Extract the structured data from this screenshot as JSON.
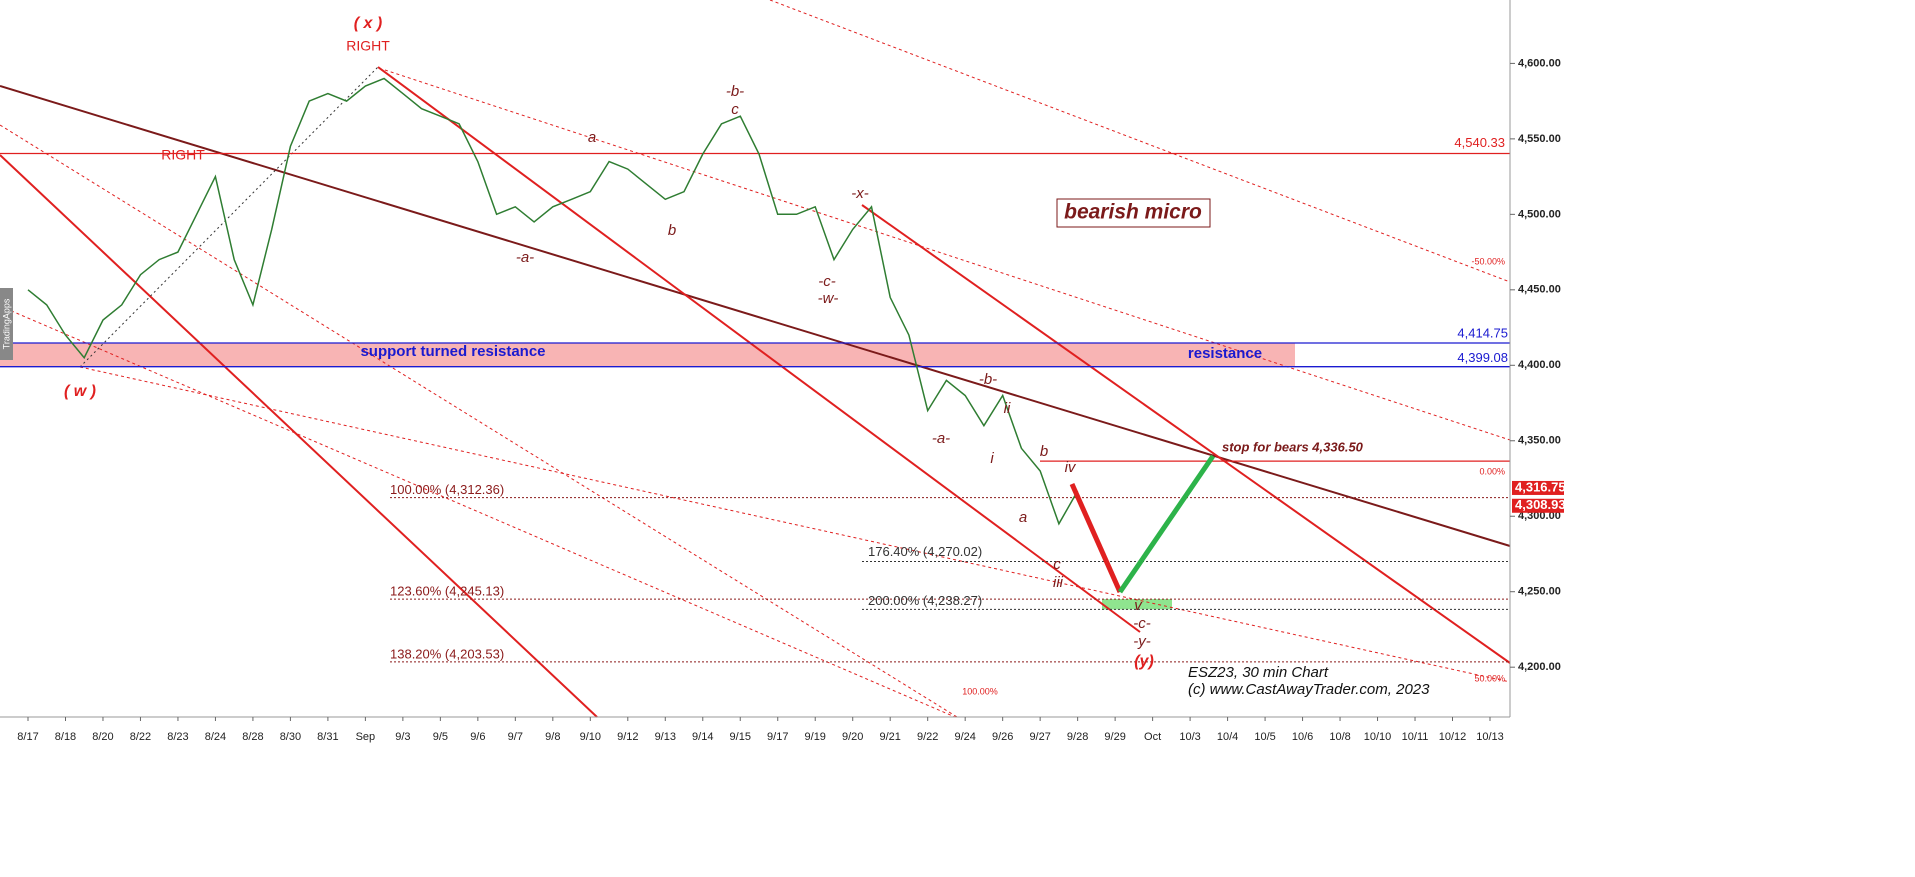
{
  "chart_data": {
    "type": "line",
    "categories": [
      "8/17",
      null,
      "8/18",
      null,
      "8/20",
      null,
      "8/22",
      null,
      "8/23",
      null,
      "8/24",
      null,
      "8/28",
      null,
      "8/30",
      null,
      "8/31",
      null,
      "Sep",
      null,
      "9/3",
      null,
      "9/5",
      null,
      "9/6",
      null,
      "9/7",
      null,
      "9/8",
      null,
      "9/10",
      null,
      "9/12",
      null,
      "9/13",
      null,
      "9/14",
      null,
      "9/15",
      null,
      "9/17",
      null,
      "9/19",
      null,
      "9/20",
      null,
      "9/21",
      null,
      "9/22",
      null,
      "9/24",
      null,
      "9/26",
      null,
      "9/27",
      null,
      "9/28",
      null,
      "9/29",
      null,
      "Oct",
      null,
      "10/3",
      null,
      "10/4",
      null,
      "10/5",
      null,
      "10/6",
      null,
      "10/8",
      null,
      "10/10",
      null,
      "10/11",
      null,
      "10/12",
      null,
      "10/13"
    ],
    "values": [
      4450,
      4440,
      4420,
      4405,
      4430,
      4440,
      4460,
      4470,
      4475,
      4500,
      4525,
      4470,
      4440,
      4490,
      4545,
      4575,
      4580,
      4575,
      4585,
      4590,
      4580,
      4570,
      4565,
      4560,
      4535,
      4500,
      4505,
      4495,
      4505,
      4510,
      4515,
      4535,
      4530,
      4520,
      4510,
      4515,
      4540,
      4560,
      4565,
      4540,
      4500,
      4500,
      4505,
      4470,
      4490,
      4505,
      4445,
      4420,
      4370,
      4390,
      4380,
      4360,
      4380,
      4345,
      4330,
      4295,
      4316.75,
      null,
      null,
      null,
      null,
      null,
      null,
      null,
      null,
      null,
      null,
      null,
      null,
      null,
      null,
      null,
      null,
      null,
      null,
      null,
      null,
      null,
      null
    ],
    "color": "#2f7d32",
    "ylim": [
      4167,
      4642
    ],
    "yticks": [
      {
        "value": 4200,
        "label": "4,200.00"
      },
      {
        "value": 4250,
        "label": "4,250.00"
      },
      {
        "value": 4300,
        "label": "4,300.00"
      },
      {
        "value": 4350,
        "label": "4,350.00"
      },
      {
        "value": 4400,
        "label": "4,400.00"
      },
      {
        "value": 4450,
        "label": "4,450.00"
      },
      {
        "value": 4500,
        "label": "4,500.00"
      },
      {
        "value": 4550,
        "label": "4,550.00"
      },
      {
        "value": 4600,
        "label": "4,600.00"
      }
    ],
    "levels": [
      {
        "value": 4540.33,
        "label": "4,540.33",
        "color": "#e02020",
        "style": "solid"
      },
      {
        "value": 4414.75,
        "label": "4,414.75",
        "color": "#1a1ad0",
        "style": "solid"
      },
      {
        "value": 4399.08,
        "label": "4,399.08",
        "color": "#1a1ad0",
        "style": "solid"
      },
      {
        "value": 4336.5,
        "label": "stop for bears 4,336.50",
        "color": "#e02020",
        "style": "solid"
      },
      {
        "value": 4312.36,
        "label": "100.00% (4,312.36)",
        "color": "#8b1a1a",
        "style": "dotted"
      },
      {
        "value": 4270.02,
        "label": "176.40% (4,270.02)",
        "color": "#333333",
        "style": "dotted"
      },
      {
        "value": 4245.13,
        "label": "123.60% (4,245.13)",
        "color": "#8b1a1a",
        "style": "dotted"
      },
      {
        "value": 4238.27,
        "label": "200.00% (4,238.27)",
        "color": "#333333",
        "style": "dotted"
      },
      {
        "value": 4203.53,
        "label": "138.20% (4,203.53)",
        "color": "#8b1a1a",
        "style": "dotted"
      }
    ],
    "price_tags": [
      {
        "value": 4316.75,
        "label": "4,316.75"
      },
      {
        "value": 4308.93,
        "label": "4,308.93"
      }
    ],
    "annotations": [
      "( x )",
      "RIGHT",
      "RIGHT",
      "( w )",
      "-a-",
      "a",
      "b",
      "-b-",
      "c",
      "-x-",
      "-c-",
      "-w-",
      "-a-",
      "-b-",
      "ii",
      "i",
      "b",
      "iv",
      "a",
      "c",
      "iii",
      "v",
      "-c-",
      "-y-",
      "(y)",
      "bearish micro",
      "support turned resistance",
      "resistance",
      "-50.00%",
      "0.00%",
      "50.00%",
      "100.00%",
      "ESZ23, 30 min Chart",
      "(c) www.CastAwayTrader.com, 2023",
      "TradingApps"
    ]
  }
}
